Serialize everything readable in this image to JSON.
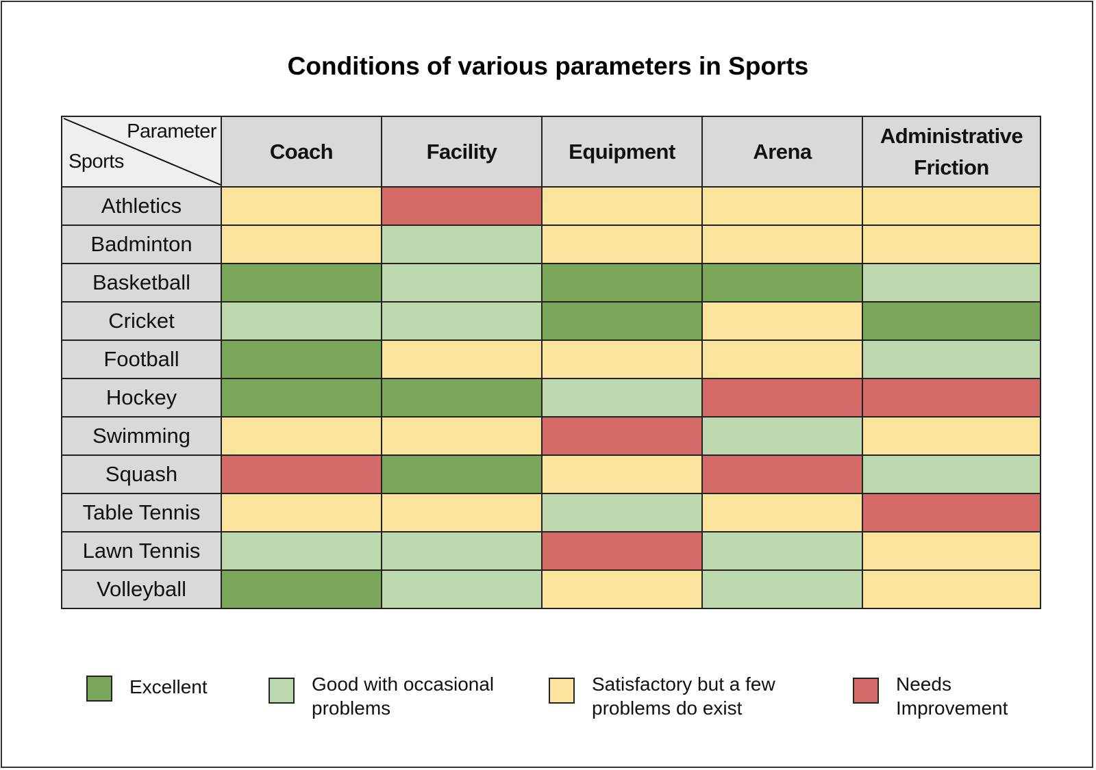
{
  "chart_data": {
    "type": "heatmap",
    "title": "Conditions of various parameters in Sports",
    "corner": {
      "column_label": "Parameter",
      "row_label": "Sports"
    },
    "columns": [
      "Coach",
      "Facility",
      "Equipment",
      "Arena",
      "Administrative Friction"
    ],
    "rows": [
      "Athletics",
      "Badminton",
      "Basketball",
      "Cricket",
      "Football",
      "Hockey",
      "Swimming",
      "Squash",
      "Table Tennis",
      "Lawn Tennis",
      "Volleyball"
    ],
    "values": [
      [
        "Satisfactory",
        "Needs Improvement",
        "Satisfactory",
        "Satisfactory",
        "Satisfactory"
      ],
      [
        "Satisfactory",
        "Good",
        "Satisfactory",
        "Satisfactory",
        "Satisfactory"
      ],
      [
        "Excellent",
        "Good",
        "Excellent",
        "Excellent",
        "Good"
      ],
      [
        "Good",
        "Good",
        "Excellent",
        "Satisfactory",
        "Excellent"
      ],
      [
        "Excellent",
        "Satisfactory",
        "Satisfactory",
        "Satisfactory",
        "Good"
      ],
      [
        "Excellent",
        "Excellent",
        "Good",
        "Needs Improvement",
        "Needs Improvement"
      ],
      [
        "Satisfactory",
        "Satisfactory",
        "Needs Improvement",
        "Good",
        "Satisfactory"
      ],
      [
        "Needs Improvement",
        "Excellent",
        "Satisfactory",
        "Needs Improvement",
        "Good"
      ],
      [
        "Satisfactory",
        "Satisfactory",
        "Good",
        "Satisfactory",
        "Needs Improvement"
      ],
      [
        "Good",
        "Good",
        "Needs Improvement",
        "Good",
        "Satisfactory"
      ],
      [
        "Excellent",
        "Good",
        "Satisfactory",
        "Good",
        "Satisfactory"
      ]
    ],
    "legend": [
      {
        "key": "Excellent",
        "label": "Excellent",
        "color": "#7aa75a"
      },
      {
        "key": "Good",
        "label": "Good with occasional\nproblems",
        "color": "#bed8ad"
      },
      {
        "key": "Satisfactory",
        "label": "Satisfactory but a few\nproblems do exist",
        "color": "#fce49f"
      },
      {
        "key": "Needs Improvement",
        "label": "Needs\nImprovement",
        "color": "#d46b68"
      }
    ],
    "legend_position": "bottom",
    "header_color": "#d9d9d9"
  }
}
